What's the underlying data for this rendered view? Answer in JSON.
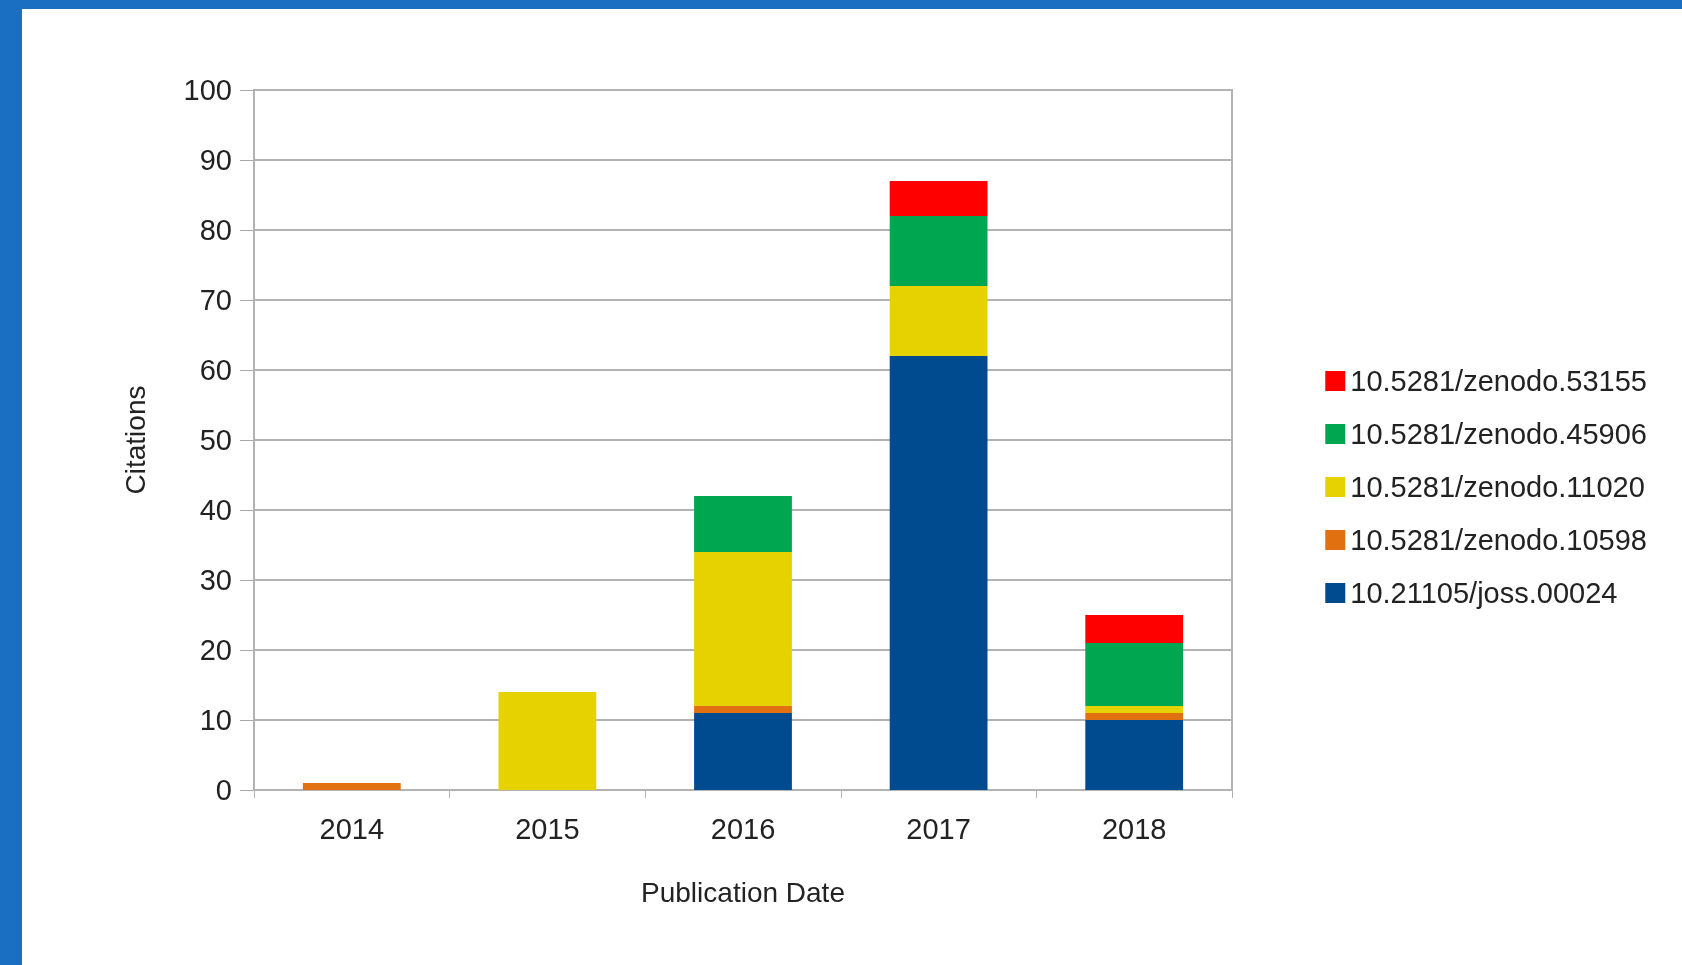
{
  "chart_data": {
    "type": "bar",
    "stacked": true,
    "xlabel": "Publication Date",
    "ylabel": "Citations",
    "categories": [
      "2014",
      "2015",
      "2016",
      "2017",
      "2018"
    ],
    "series": [
      {
        "name": "10.21105/joss.00024",
        "color": "#004a8f",
        "values": [
          0,
          0,
          11,
          62,
          10
        ]
      },
      {
        "name": "10.5281/zenodo.10598",
        "color": "#e07010",
        "values": [
          1,
          0,
          1,
          0,
          1
        ]
      },
      {
        "name": "10.5281/zenodo.11020",
        "color": "#e6d200",
        "values": [
          0,
          14,
          22,
          10,
          1
        ]
      },
      {
        "name": "10.5281/zenodo.45906",
        "color": "#00a650",
        "values": [
          0,
          0,
          8,
          10,
          9
        ]
      },
      {
        "name": "10.5281/zenodo.53155",
        "color": "#ff0000",
        "values": [
          0,
          0,
          0,
          5,
          4
        ]
      }
    ],
    "ylim": [
      0,
      100
    ],
    "yticks": [
      0,
      10,
      20,
      30,
      40,
      50,
      60,
      70,
      80,
      90,
      100
    ],
    "grid": "y",
    "legend": "right"
  }
}
